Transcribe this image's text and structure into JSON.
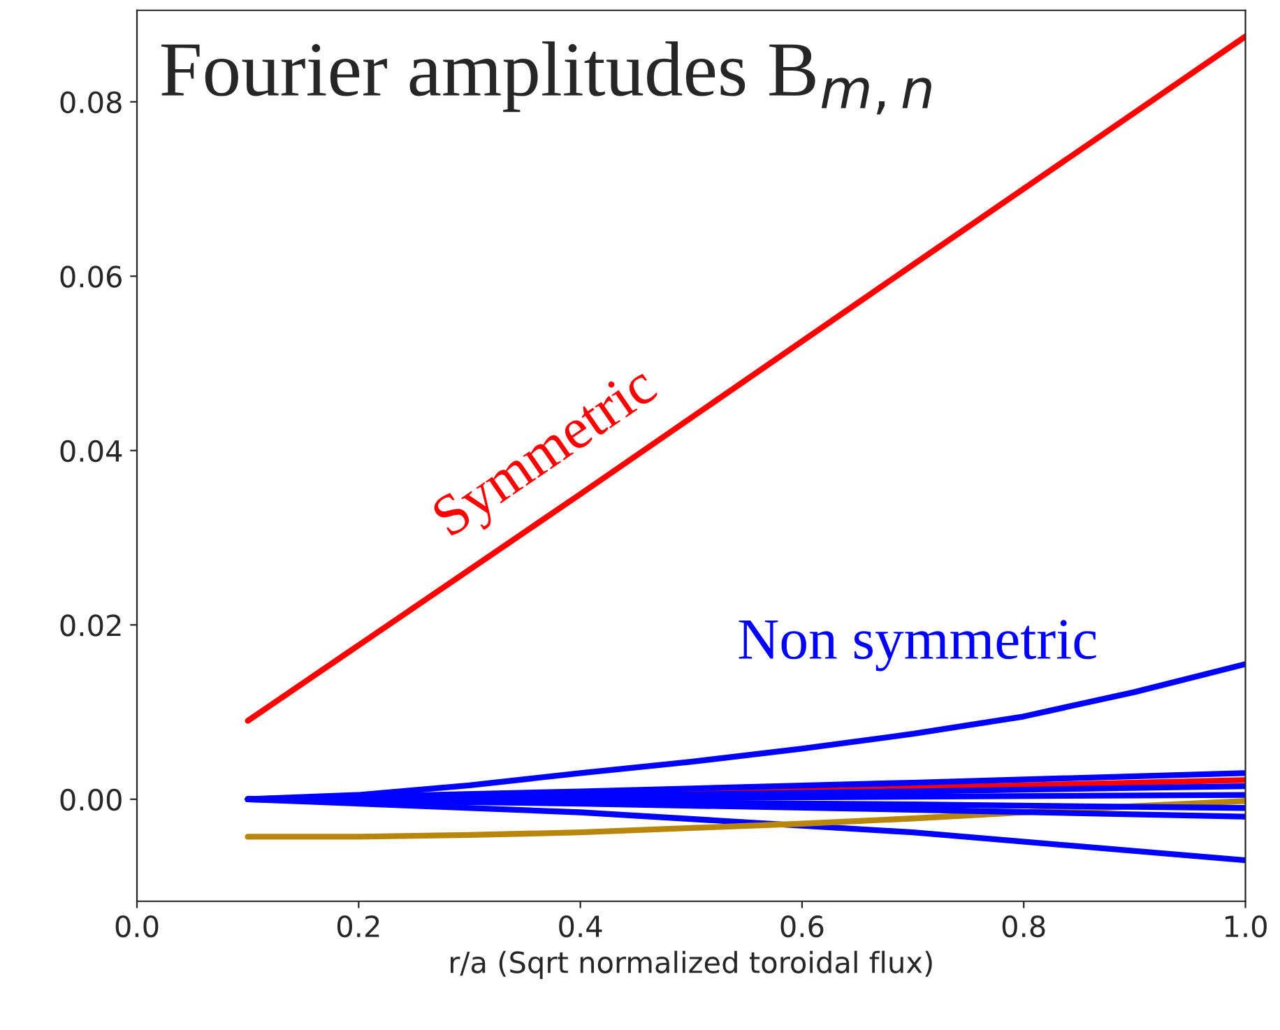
{
  "chart_data": {
    "type": "line",
    "title": "Fourier amplitudes B$_{m,n}$",
    "xlabel": "r/a (Sqrt normalized toroidal flux)",
    "xlim": [
      0.0,
      1.0
    ],
    "xticks": [
      {
        "value": 0,
        "label": "0.0"
      },
      0.2,
      0.4,
      0.6,
      0.8,
      {
        "value": 1,
        "label": "1.0"
      }
    ],
    "ylim": [
      -0.0117,
      0.0905
    ],
    "yticks": [
      {
        "value": 0,
        "label": "0.00"
      },
      {
        "value": 0.02,
        "label": "0.02"
      },
      {
        "value": 0.04,
        "label": "0.04"
      },
      {
        "value": 0.06,
        "label": "0.06"
      },
      {
        "value": 0.08,
        "label": "0.08"
      }
    ],
    "grid": false,
    "legend": false,
    "marker": "none",
    "line_style": "solid",
    "series": [
      {
        "name": "Symmetric",
        "color": "#ff0000",
        "x": [
          0.1,
          0.4,
          0.7,
          1.0
        ],
        "values": [
          0.009,
          0.035,
          0.0613,
          0.0875
        ]
      },
      {
        "name": "Non symmetric",
        "color": "#0000ff",
        "x": [
          0.1,
          0.2,
          0.3,
          0.4,
          0.5,
          0.6,
          0.7,
          0.8,
          0.9,
          1.0
        ],
        "values": [
          0.0,
          0.0005,
          0.0016,
          0.003,
          0.0043,
          0.0058,
          0.0075,
          0.0095,
          0.0123,
          0.0155
        ]
      },
      {
        "color": "#0000ff",
        "x": [
          0.1,
          0.4,
          0.7,
          1.0
        ],
        "values": [
          0.0,
          -0.0015,
          -0.0038,
          -0.007
        ]
      },
      {
        "color": "#b8860b",
        "x": [
          0.1,
          0.2,
          0.3,
          0.4,
          0.5,
          0.6,
          0.7,
          0.8,
          0.9,
          1.0
        ],
        "values": [
          -0.0043,
          -0.0043,
          -0.0041,
          -0.0038,
          -0.0033,
          -0.0028,
          -0.0022,
          -0.0015,
          -0.0008,
          -0.0002
        ]
      },
      {
        "color": "#ff0000",
        "x": [
          0.1,
          0.4,
          0.7,
          1.0
        ],
        "values": [
          0.0,
          0.0006,
          0.0013,
          0.0022
        ]
      },
      {
        "color": "#0000ff",
        "x": [
          0.1,
          0.4,
          0.7,
          1.0
        ],
        "values": [
          0.0,
          0.0009,
          0.0019,
          0.003
        ]
      },
      {
        "color": "#0000ff",
        "x": [
          0.1,
          0.4,
          0.7,
          1.0
        ],
        "values": [
          0.0,
          0.0004,
          0.0009,
          0.0015
        ]
      },
      {
        "color": "#0000ff",
        "x": [
          0.1,
          0.4,
          0.7,
          1.0
        ],
        "values": [
          0.0,
          0.0001,
          0.0003,
          0.0005
        ]
      },
      {
        "color": "#0000ff",
        "x": [
          0.1,
          0.4,
          0.7,
          1.0
        ],
        "values": [
          0.0,
          -0.0003,
          -0.0006,
          -0.001
        ]
      },
      {
        "color": "#0000ff",
        "x": [
          0.1,
          0.4,
          0.7,
          1.0
        ],
        "values": [
          0.0,
          -0.0005,
          -0.0012,
          -0.002
        ]
      }
    ]
  }
}
